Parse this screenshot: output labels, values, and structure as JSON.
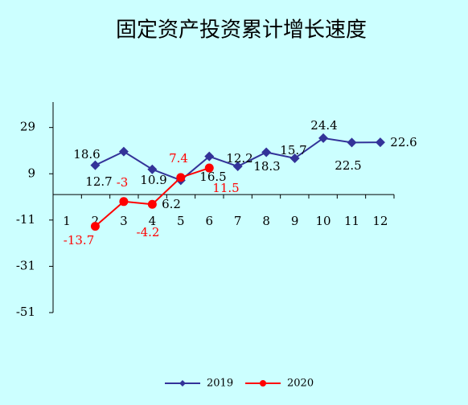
{
  "chart_data": {
    "type": "line",
    "title": "固定资产投资累计增长速度",
    "categories": [
      "1",
      "2",
      "3",
      "4",
      "5",
      "6",
      "7",
      "8",
      "9",
      "10",
      "11",
      "12"
    ],
    "series": [
      {
        "name": "2019",
        "color": "#333399",
        "values": [
          null,
          12.7,
          18.6,
          10.9,
          6.2,
          16.5,
          12.2,
          18.3,
          15.7,
          24.4,
          22.5,
          22.6
        ]
      },
      {
        "name": "2020",
        "color": "#ff0000",
        "values": [
          null,
          -13.7,
          -3,
          -4.2,
          7.4,
          11.5,
          null,
          null,
          null,
          null,
          null,
          null
        ]
      }
    ],
    "ylim": [
      -51,
      40
    ],
    "yticks": [
      -51,
      -31,
      -11,
      9,
      29
    ],
    "legend": "bottom"
  }
}
